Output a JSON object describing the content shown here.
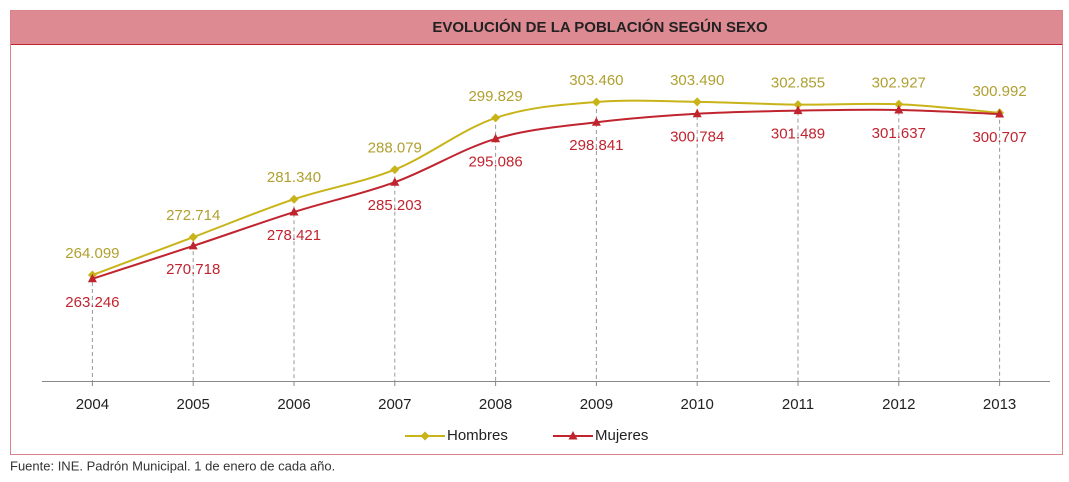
{
  "chart_data": {
    "type": "line",
    "title": "EVOLUCIÓN DE LA POBLACIÓN SEGÚN SEXO",
    "categories": [
      "2004",
      "2005",
      "2006",
      "2007",
      "2008",
      "2009",
      "2010",
      "2011",
      "2012",
      "2013"
    ],
    "series": [
      {
        "name": "Hombres",
        "color": "#c8b418",
        "label_color": "#b0a030",
        "values": [
          264099,
          272714,
          281340,
          288079,
          299829,
          303460,
          303490,
          302855,
          302927,
          300992
        ],
        "value_labels": [
          "264.099",
          "272.714",
          "281.340",
          "288.079",
          "299.829",
          "303.460",
          "303.490",
          "302.855",
          "302.927",
          "300.992"
        ]
      },
      {
        "name": "Mujeres",
        "color": "#c0242f",
        "label_color": "#c0242f",
        "values": [
          263246,
          270718,
          278421,
          285203,
          295086,
          298841,
          300784,
          301489,
          301637,
          300707
        ],
        "value_labels": [
          "263.246",
          "270.718",
          "278.421",
          "285.203",
          "295.086",
          "298.841",
          "300.784",
          "301.489",
          "301.637",
          "300.707"
        ]
      }
    ],
    "ylim": [
      240000,
      313000
    ],
    "source": "Fuente: INE. Padrón Municipal. 1 de enero de cada año."
  }
}
